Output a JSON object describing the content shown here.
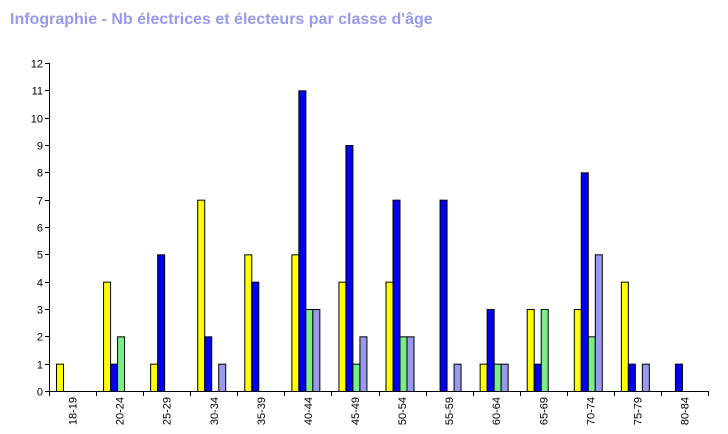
{
  "chart_data": {
    "type": "bar",
    "title": "Infographie - Nb électrices et électeurs par classe d'âge",
    "xlabel": "",
    "ylabel": "",
    "ylim": [
      0,
      12
    ],
    "yticks": [
      0,
      1,
      2,
      3,
      4,
      5,
      6,
      7,
      8,
      9,
      10,
      11,
      12
    ],
    "grid": false,
    "legend": "none",
    "categories": [
      "18-19",
      "20-24",
      "25-29",
      "30-34",
      "35-39",
      "40-44",
      "45-49",
      "50-54",
      "55-59",
      "60-64",
      "65-69",
      "70-74",
      "75-79",
      "80-84"
    ],
    "series": [
      {
        "color": "#ffff00",
        "values": [
          1,
          4,
          1,
          7,
          5,
          5,
          4,
          4,
          0,
          1,
          3,
          3,
          4,
          0
        ]
      },
      {
        "color": "#0000ee",
        "values": [
          0,
          1,
          5,
          2,
          4,
          11,
          9,
          7,
          7,
          3,
          1,
          8,
          1,
          1
        ]
      },
      {
        "color": "#77ee88",
        "values": [
          0,
          2,
          0,
          0,
          0,
          3,
          1,
          2,
          0,
          1,
          3,
          2,
          0,
          0
        ]
      },
      {
        "color": "#9999ee",
        "values": [
          0,
          0,
          0,
          1,
          0,
          3,
          2,
          2,
          1,
          1,
          0,
          5,
          1,
          0
        ]
      }
    ]
  }
}
